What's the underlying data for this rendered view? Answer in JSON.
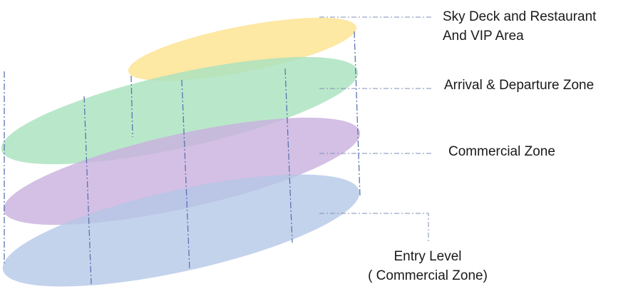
{
  "levels": [
    {
      "id": "sky-deck",
      "lines": [
        "Sky Deck and Restaurant",
        "And VIP Area"
      ],
      "color": "#fde59a"
    },
    {
      "id": "arrival-departure",
      "lines": [
        "Arrival & Departure Zone"
      ],
      "color": "#a9e2be"
    },
    {
      "id": "commercial",
      "lines": [
        "Commercial Zone"
      ],
      "color": "#c9b0dd"
    },
    {
      "id": "entry",
      "lines": [
        "Entry Level",
        "( Commercial Zone)"
      ],
      "color": "#b4c7e7"
    }
  ],
  "colors": {
    "leader_line": "#7f8fb6",
    "column_line": "#5b73b0"
  }
}
